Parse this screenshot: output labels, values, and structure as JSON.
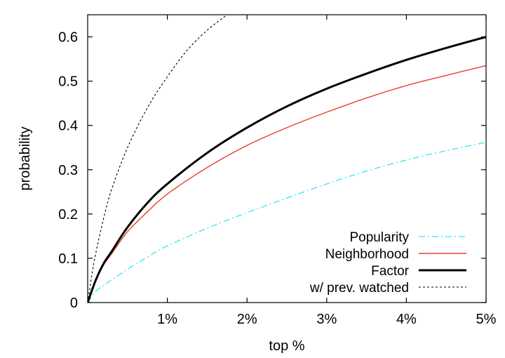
{
  "chart_data": {
    "type": "line",
    "title": "",
    "xlabel": "top %",
    "ylabel": "probability",
    "xlim": [
      0,
      5
    ],
    "ylim": [
      0,
      0.65
    ],
    "x_ticks": [
      {
        "value": 1,
        "label": "1%"
      },
      {
        "value": 2,
        "label": "2%"
      },
      {
        "value": 3,
        "label": "3%"
      },
      {
        "value": 4,
        "label": "4%"
      },
      {
        "value": 5,
        "label": "5%"
      }
    ],
    "y_ticks": [
      {
        "value": 0,
        "label": "0"
      },
      {
        "value": 0.1,
        "label": "0.1"
      },
      {
        "value": 0.2,
        "label": "0.2"
      },
      {
        "value": 0.3,
        "label": "0.3"
      },
      {
        "value": 0.4,
        "label": "0.4"
      },
      {
        "value": 0.5,
        "label": "0.5"
      },
      {
        "value": 0.6,
        "label": "0.6"
      }
    ],
    "grid": false,
    "legend_position": "bottom-right",
    "series": [
      {
        "name": "Popularity",
        "key": "popularity",
        "color": "#33e6f0",
        "dash": "dash-dot",
        "x": [
          0,
          0.1,
          0.25,
          0.5,
          0.75,
          1,
          1.5,
          2,
          2.5,
          3,
          3.5,
          4,
          4.5,
          5
        ],
        "values": [
          0,
          0.025,
          0.045,
          0.075,
          0.103,
          0.128,
          0.168,
          0.203,
          0.236,
          0.268,
          0.297,
          0.322,
          0.343,
          0.362
        ]
      },
      {
        "name": "Neighborhood",
        "key": "neighborhood",
        "color": "#e8402a",
        "dash": "solid",
        "x": [
          0,
          0.1,
          0.2,
          0.3,
          0.5,
          0.75,
          1,
          1.5,
          2,
          2.5,
          3,
          3.5,
          4,
          4.5,
          5
        ],
        "values": [
          0,
          0.05,
          0.085,
          0.11,
          0.16,
          0.205,
          0.245,
          0.305,
          0.355,
          0.395,
          0.43,
          0.462,
          0.49,
          0.513,
          0.535
        ]
      },
      {
        "name": "Factor",
        "key": "factor",
        "color": "#000000",
        "dash": "thick",
        "x": [
          0,
          0.1,
          0.2,
          0.3,
          0.5,
          0.75,
          1,
          1.5,
          2,
          2.5,
          3,
          3.5,
          4,
          4.5,
          5
        ],
        "values": [
          0,
          0.05,
          0.088,
          0.115,
          0.17,
          0.225,
          0.268,
          0.338,
          0.395,
          0.443,
          0.483,
          0.517,
          0.548,
          0.575,
          0.6
        ]
      },
      {
        "name": "w/ prev. watched",
        "key": "prev_watched",
        "color": "#000000",
        "dash": "dotted",
        "x": [
          0,
          0.05,
          0.1,
          0.2,
          0.3,
          0.5,
          0.75,
          1,
          1.25,
          1.5,
          1.75
        ],
        "values": [
          0,
          0.06,
          0.11,
          0.19,
          0.255,
          0.35,
          0.44,
          0.51,
          0.57,
          0.615,
          0.65
        ]
      }
    ]
  }
}
